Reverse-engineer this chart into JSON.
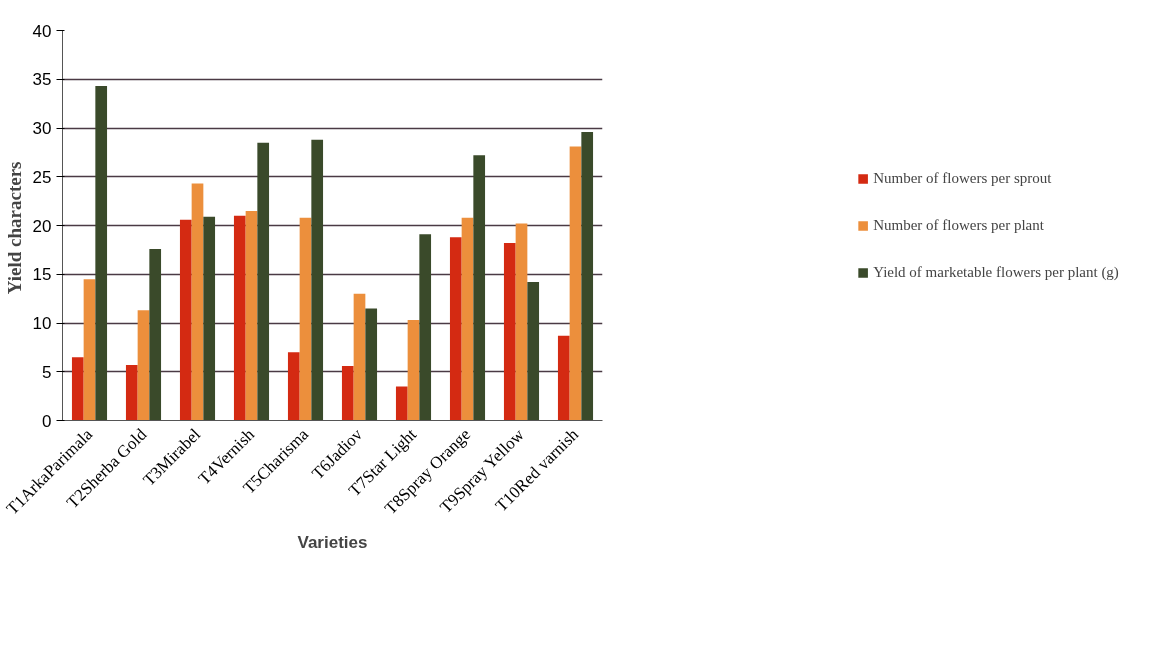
{
  "chart_data": {
    "type": "bar",
    "xlabel": "Varieties",
    "ylabel": "Yield  characters",
    "categories": [
      "T1ArkaParimala",
      "T2Sherba Gold",
      "T3Mirabel",
      "T4Vernish",
      "T5Charisma",
      "T6Jadiov",
      "T7Star Light",
      "T8Spray Orange",
      "T9Spray Yellow",
      "T10Red varnish"
    ],
    "series": [
      {
        "name": "Number of flowers per sprout",
        "color": "#d42a12",
        "values": [
          6.5,
          5.7,
          20.6,
          21.0,
          7.0,
          5.6,
          3.5,
          18.8,
          18.2,
          8.7
        ]
      },
      {
        "name": "Number of flowers per plant",
        "color": "#ec8f3c",
        "values": [
          14.5,
          11.3,
          24.3,
          21.5,
          20.8,
          13.0,
          10.3,
          20.8,
          20.2,
          28.1
        ]
      },
      {
        "name": "Yield of marketable flowers per plant (g)",
        "color": "#3a4a2a",
        "values": [
          34.3,
          17.6,
          20.9,
          28.5,
          28.8,
          11.5,
          19.1,
          27.2,
          14.2,
          29.6
        ]
      }
    ],
    "ylim": [
      0,
      40
    ],
    "yticks": [
      0,
      5,
      10,
      15,
      20,
      25,
      30,
      35,
      40
    ],
    "grid": "y",
    "legend": "right"
  }
}
